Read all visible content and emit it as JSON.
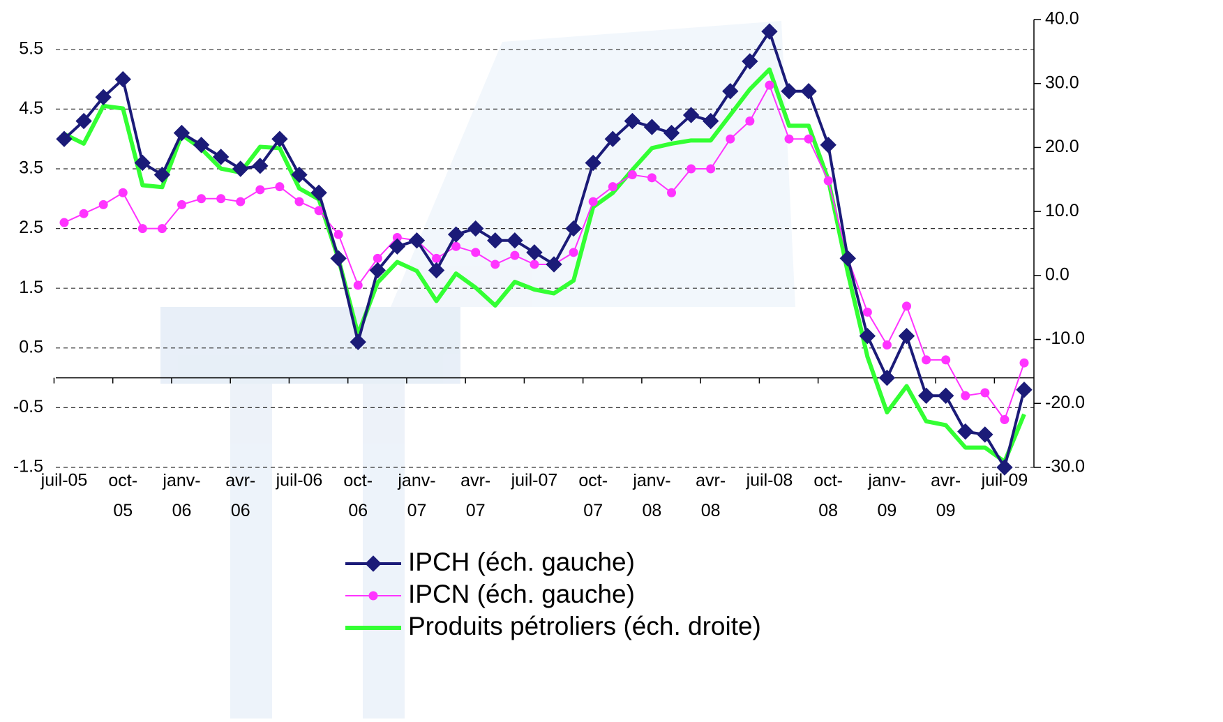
{
  "chart_data": {
    "type": "line",
    "categories": [
      "juil-05",
      null,
      null,
      "oct-05",
      null,
      null,
      "janv-06",
      null,
      null,
      "avr-06",
      null,
      null,
      "juil-06",
      null,
      null,
      "oct-06",
      null,
      null,
      "janv-07",
      null,
      null,
      "avr-07",
      null,
      null,
      "juil-07",
      null,
      null,
      "oct-07",
      null,
      null,
      "janv-08",
      null,
      null,
      "avr-08",
      null,
      null,
      "juil-08",
      null,
      null,
      "oct-08",
      null,
      null,
      "janv-09",
      null,
      null,
      "avr-09",
      null,
      null,
      "juil-09",
      null
    ],
    "series": [
      {
        "name": "IPCH (éch. gauche)",
        "color": "#1b1b78",
        "marker": "diamond",
        "line_width": 4,
        "values": [
          4.0,
          4.3,
          4.7,
          5.0,
          3.6,
          3.4,
          4.1,
          3.9,
          3.7,
          3.5,
          3.55,
          4.0,
          3.4,
          3.1,
          2.0,
          0.6,
          1.8,
          2.2,
          2.3,
          1.8,
          2.4,
          2.5,
          2.3,
          2.3,
          2.1,
          1.9,
          2.5,
          3.6,
          4.0,
          4.3,
          4.2,
          4.1,
          4.4,
          4.3,
          4.8,
          5.3,
          5.8,
          4.8,
          4.8,
          3.9,
          2.0,
          0.7,
          0.0,
          0.7,
          -0.3,
          -0.3,
          -0.9,
          -0.95,
          -1.5,
          -0.2
        ]
      },
      {
        "name": "IPCN (éch. gauche)",
        "color": "#ff33ff",
        "marker": "circle",
        "line_width": 2,
        "values": [
          2.6,
          2.75,
          2.9,
          3.1,
          2.5,
          2.5,
          2.9,
          3.0,
          3.0,
          2.95,
          3.15,
          3.2,
          2.95,
          2.8,
          2.4,
          1.55,
          2.0,
          2.35,
          2.3,
          2.0,
          2.2,
          2.1,
          1.9,
          2.05,
          1.9,
          1.9,
          2.1,
          2.95,
          3.2,
          3.4,
          3.35,
          3.1,
          3.5,
          3.5,
          4.0,
          4.3,
          4.9,
          4.0,
          4.0,
          3.3,
          2.0,
          1.1,
          0.55,
          1.2,
          0.3,
          0.3,
          -0.3,
          -0.25,
          -0.7,
          0.25
        ]
      },
      {
        "name": "Produits pétroliers (éch. droite)",
        "color": "#33ff33",
        "marker": "none",
        "line_width": 6,
        "axis": "y2",
        "values": [
          22.1,
          20.6,
          26.5,
          26.1,
          14.1,
          13.8,
          22.0,
          19.8,
          16.7,
          16.1,
          20.1,
          19.9,
          13.6,
          11.9,
          2.6,
          -9.2,
          -1.1,
          2.1,
          0.7,
          -4.0,
          0.3,
          -1.9,
          -4.7,
          -1.0,
          -2.2,
          -2.8,
          -0.8,
          10.7,
          12.9,
          16.5,
          19.9,
          20.6,
          21.1,
          21.1,
          25.1,
          29.1,
          32.2,
          23.4,
          23.4,
          15.0,
          0.4,
          -12.7,
          -21.4,
          -17.3,
          -22.8,
          -23.4,
          -26.9,
          -26.9,
          -29.1,
          -21.7
        ]
      }
    ],
    "ylim": [
      -1.5,
      6.0
    ],
    "yticks": [
      -1.5,
      -0.5,
      0.5,
      1.5,
      2.5,
      3.5,
      4.5,
      5.5
    ],
    "y2lim": [
      -30,
      40
    ],
    "y2ticks": [
      {
        "value": -30,
        "label": "-30.0"
      },
      {
        "value": -20,
        "label": "-20.0"
      },
      {
        "value": -10,
        "label": "-10.0"
      },
      {
        "value": 0,
        "label": "0.0"
      },
      {
        "value": 10,
        "label": "10.0"
      },
      {
        "value": 20,
        "label": "20.0"
      },
      {
        "value": 30,
        "label": "30.0"
      },
      {
        "value": 40,
        "label": "40.0"
      }
    ],
    "grid": true,
    "legend_position": "bottom"
  }
}
